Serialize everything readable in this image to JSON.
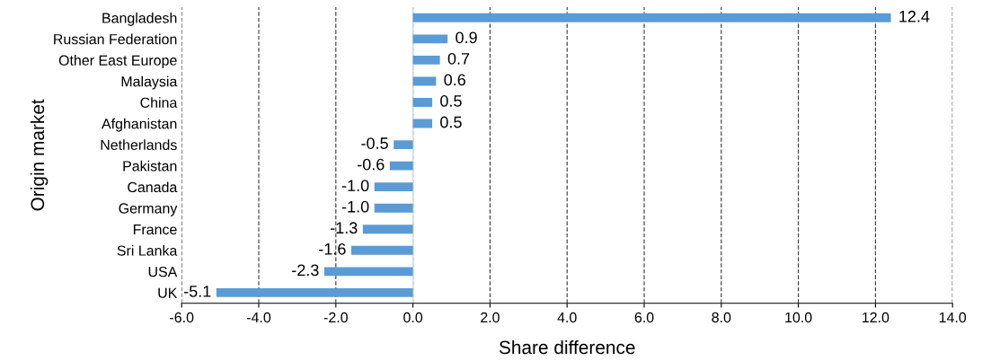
{
  "chart_data": {
    "type": "bar",
    "orientation": "horizontal",
    "categories": [
      "Bangladesh",
      "Russian Federation",
      "Other East Europe",
      "Malaysia",
      "China",
      "Afghanistan",
      "Netherlands",
      "Pakistan",
      "Canada",
      "Germany",
      "France",
      "Sri Lanka",
      "USA",
      "UK"
    ],
    "values": [
      12.4,
      0.9,
      0.7,
      0.6,
      0.5,
      0.5,
      -0.5,
      -0.6,
      -1.0,
      -1.0,
      -1.3,
      -1.6,
      -2.3,
      -5.1
    ],
    "value_labels": [
      "12.4",
      "0.9",
      "0.7",
      "0.6",
      "0.5",
      "0.5",
      "-0.5",
      "-0.6",
      "-1.0",
      "-1.0",
      "-1.3",
      "-1.6",
      "-2.3",
      "-5.1"
    ],
    "color": "#5b9bd5",
    "xlabel": "Share difference",
    "ylabel": "Origin market",
    "xlim": [
      -6.0,
      14.0
    ],
    "xticks": [
      {
        "value": -6,
        "label": "-6.0"
      },
      {
        "value": -4,
        "label": "-4.0"
      },
      {
        "value": -2,
        "label": "-2.0"
      },
      {
        "value": 0,
        "label": "0.0"
      },
      {
        "value": 2,
        "label": "2.0"
      },
      {
        "value": 4,
        "label": "4.0"
      },
      {
        "value": 6,
        "label": "6.0"
      },
      {
        "value": 8,
        "label": "8.0"
      },
      {
        "value": 10,
        "label": "10.0"
      },
      {
        "value": 12,
        "label": "12.0"
      },
      {
        "value": 14,
        "label": "14.0"
      }
    ],
    "grid": "x"
  }
}
